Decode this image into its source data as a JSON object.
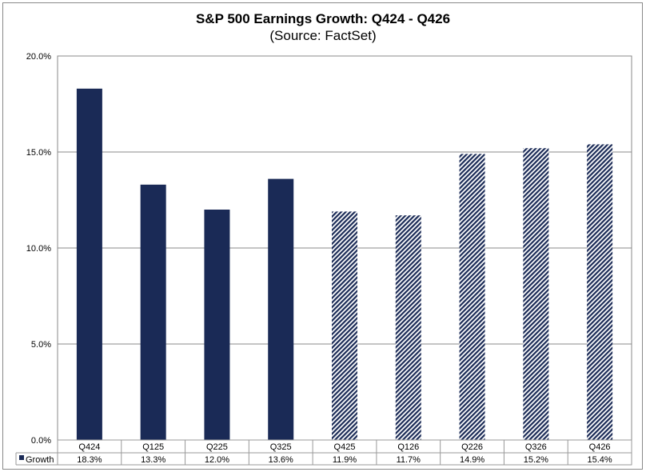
{
  "chart_data": {
    "type": "bar",
    "title": "S&P 500 Earnings Growth: Q424 - Q426",
    "subtitle": "(Source: FactSet)",
    "categories": [
      "Q424",
      "Q125",
      "Q225",
      "Q325",
      "Q425",
      "Q126",
      "Q226",
      "Q326",
      "Q426"
    ],
    "series": [
      {
        "name": "Growth",
        "values": [
          18.3,
          13.3,
          12.0,
          13.6,
          11.9,
          11.7,
          14.9,
          15.2,
          15.4
        ],
        "value_labels": [
          "18.3%",
          "13.3%",
          "12.0%",
          "13.6%",
          "11.9%",
          "11.7%",
          "14.9%",
          "15.2%",
          "15.4%"
        ],
        "estimated": [
          false,
          false,
          false,
          false,
          true,
          true,
          true,
          true,
          true
        ]
      }
    ],
    "ylim": [
      0,
      20
    ],
    "yticks": [
      0,
      5,
      10,
      15,
      20
    ],
    "ytick_labels": [
      "0.0%",
      "5.0%",
      "10.0%",
      "15.0%",
      "20.0%"
    ],
    "grid": true,
    "legend": "data-table",
    "colors": {
      "bar": "#1a2a56",
      "grid": "#888888"
    }
  }
}
